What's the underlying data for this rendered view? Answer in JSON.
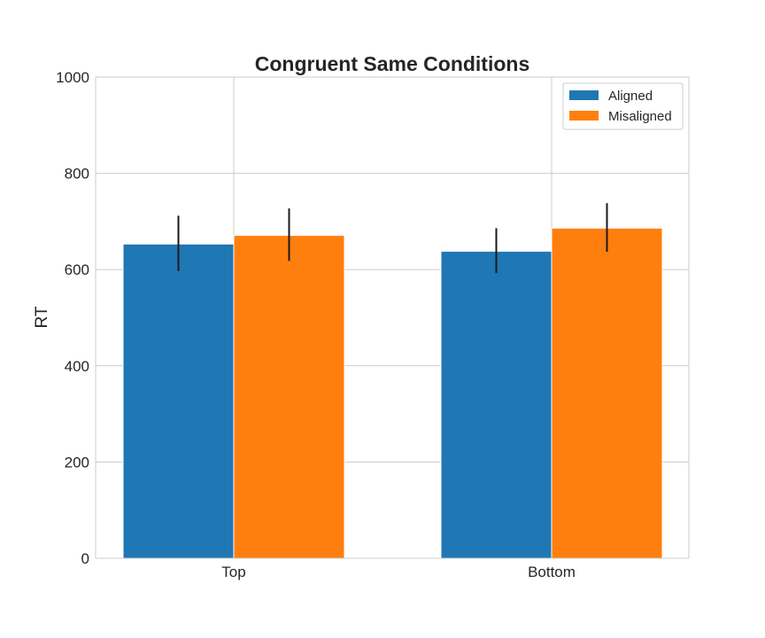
{
  "chart_data": {
    "type": "bar",
    "title": "Congruent Same Conditions",
    "xlabel": "",
    "ylabel": "RT",
    "categories": [
      "Top",
      "Bottom"
    ],
    "ylim": [
      0,
      1000
    ],
    "yticks": [
      0,
      200,
      400,
      600,
      800,
      1000
    ],
    "grid": true,
    "legend_position": "top-right",
    "series": [
      {
        "name": "Aligned",
        "color": "#1f77b4",
        "values": [
          653,
          638
        ],
        "error_low": [
          597,
          593
        ],
        "error_high": [
          712,
          686
        ]
      },
      {
        "name": "Misaligned",
        "color": "#ff7f0e",
        "values": [
          671,
          686
        ],
        "error_low": [
          618,
          637
        ],
        "error_high": [
          727,
          738
        ]
      }
    ]
  }
}
